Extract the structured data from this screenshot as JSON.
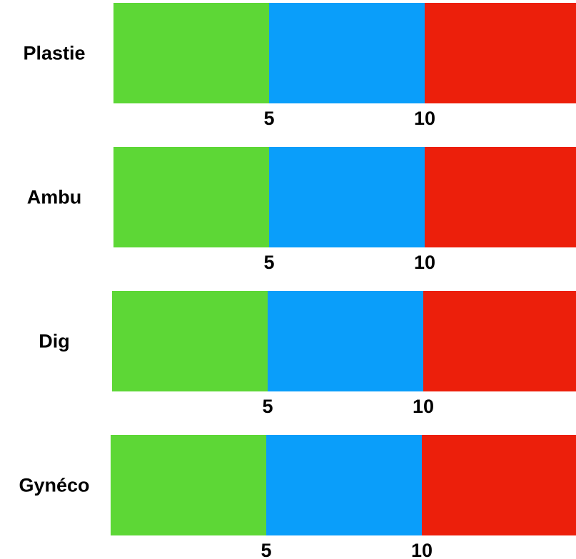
{
  "chart_data": {
    "type": "bar",
    "orientation": "horizontal",
    "stacked_segments": true,
    "categories": [
      "Plastie",
      "Ambu",
      "Dig",
      "Gynéco"
    ],
    "segments": [
      {
        "color": "#5dd736"
      },
      {
        "color": "#0a9efa"
      },
      {
        "color": "#ec1f0b"
      }
    ],
    "thresholds": [
      5,
      10
    ],
    "tick_labels": [
      "5",
      "10"
    ],
    "xlim": [
      0,
      15
    ],
    "grid": false,
    "legend": "none"
  }
}
